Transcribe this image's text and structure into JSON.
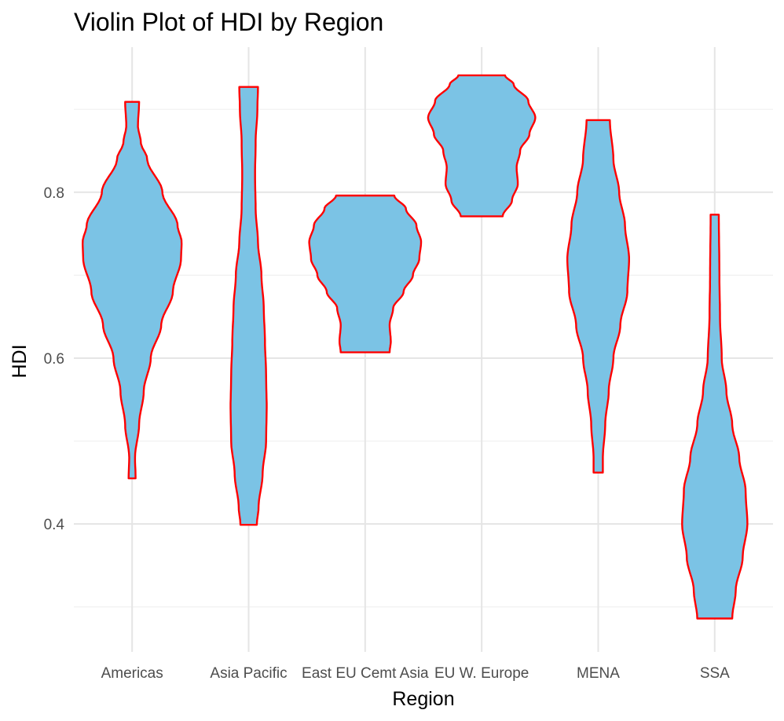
{
  "chart_data": {
    "type": "violin",
    "title": "Violin Plot of HDI by Region",
    "xlabel": "Region",
    "ylabel": "HDI",
    "ylim": [
      0.26,
      0.975
    ],
    "y_ticks": [
      "0.4",
      "0.6",
      "0.8"
    ],
    "y_tick_values": [
      0.4,
      0.6,
      0.8
    ],
    "y_minor_values": [
      0.3,
      0.5,
      0.7,
      0.9
    ],
    "grid": true,
    "fill_color": "#7BC3E5",
    "outline_color": "#FF0000",
    "categories": [
      "Americas",
      "Asia Pacific",
      "East EU Cemt Asia",
      "EU W. Europe",
      "MENA",
      "SSA"
    ],
    "series": [
      {
        "category": "Americas",
        "y_min": 0.455,
        "y_max": 0.909,
        "profile": [
          [
            0.455,
            0.06
          ],
          [
            0.48,
            0.05
          ],
          [
            0.52,
            0.12
          ],
          [
            0.56,
            0.2
          ],
          [
            0.6,
            0.32
          ],
          [
            0.64,
            0.5
          ],
          [
            0.68,
            0.7
          ],
          [
            0.72,
            0.84
          ],
          [
            0.74,
            0.85
          ],
          [
            0.76,
            0.78
          ],
          [
            0.8,
            0.52
          ],
          [
            0.84,
            0.26
          ],
          [
            0.86,
            0.15
          ],
          [
            0.88,
            0.1
          ],
          [
            0.909,
            0.12
          ]
        ]
      },
      {
        "category": "Asia Pacific",
        "y_min": 0.399,
        "y_max": 0.927,
        "profile": [
          [
            0.399,
            0.14
          ],
          [
            0.42,
            0.17
          ],
          [
            0.46,
            0.24
          ],
          [
            0.5,
            0.3
          ],
          [
            0.54,
            0.31
          ],
          [
            0.58,
            0.3
          ],
          [
            0.62,
            0.28
          ],
          [
            0.66,
            0.26
          ],
          [
            0.7,
            0.22
          ],
          [
            0.74,
            0.16
          ],
          [
            0.78,
            0.12
          ],
          [
            0.82,
            0.11
          ],
          [
            0.86,
            0.12
          ],
          [
            0.9,
            0.15
          ],
          [
            0.927,
            0.16
          ]
        ]
      },
      {
        "category": "East EU Cemt Asia",
        "y_min": 0.607,
        "y_max": 0.796,
        "profile": [
          [
            0.607,
            0.42
          ],
          [
            0.62,
            0.44
          ],
          [
            0.64,
            0.42
          ],
          [
            0.66,
            0.48
          ],
          [
            0.68,
            0.66
          ],
          [
            0.7,
            0.82
          ],
          [
            0.72,
            0.93
          ],
          [
            0.74,
            0.96
          ],
          [
            0.76,
            0.88
          ],
          [
            0.78,
            0.7
          ],
          [
            0.796,
            0.5
          ]
        ]
      },
      {
        "category": "EU W. Europe",
        "y_min": 0.771,
        "y_max": 0.941,
        "profile": [
          [
            0.771,
            0.36
          ],
          [
            0.79,
            0.52
          ],
          [
            0.81,
            0.62
          ],
          [
            0.83,
            0.6
          ],
          [
            0.85,
            0.66
          ],
          [
            0.87,
            0.82
          ],
          [
            0.89,
            0.92
          ],
          [
            0.91,
            0.8
          ],
          [
            0.93,
            0.55
          ],
          [
            0.941,
            0.4
          ]
        ]
      },
      {
        "category": "MENA",
        "y_min": 0.462,
        "y_max": 0.887,
        "profile": [
          [
            0.462,
            0.08
          ],
          [
            0.48,
            0.08
          ],
          [
            0.52,
            0.12
          ],
          [
            0.56,
            0.18
          ],
          [
            0.6,
            0.26
          ],
          [
            0.64,
            0.38
          ],
          [
            0.68,
            0.5
          ],
          [
            0.72,
            0.53
          ],
          [
            0.76,
            0.46
          ],
          [
            0.8,
            0.36
          ],
          [
            0.84,
            0.26
          ],
          [
            0.887,
            0.2
          ]
        ]
      },
      {
        "category": "SSA",
        "y_min": 0.286,
        "y_max": 0.773,
        "profile": [
          [
            0.286,
            0.3
          ],
          [
            0.32,
            0.36
          ],
          [
            0.36,
            0.48
          ],
          [
            0.4,
            0.56
          ],
          [
            0.44,
            0.53
          ],
          [
            0.48,
            0.42
          ],
          [
            0.52,
            0.3
          ],
          [
            0.56,
            0.2
          ],
          [
            0.6,
            0.12
          ],
          [
            0.65,
            0.09
          ],
          [
            0.7,
            0.08
          ],
          [
            0.773,
            0.07
          ]
        ]
      }
    ]
  }
}
